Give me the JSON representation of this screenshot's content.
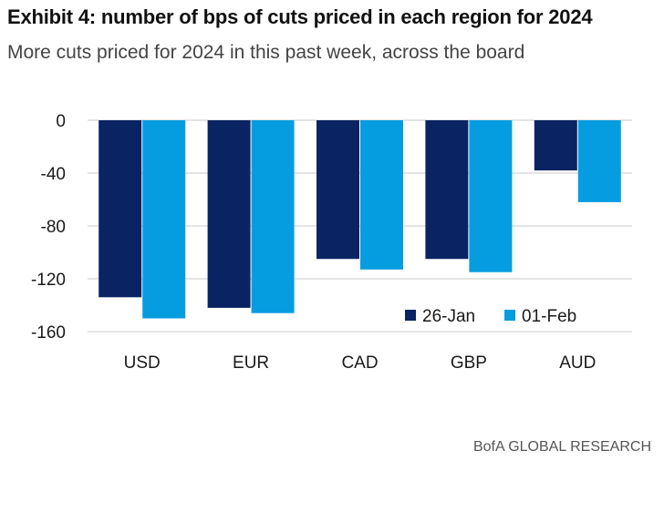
{
  "title": "Exhibit 4: number of bps of cuts priced in each region for 2024",
  "subtitle": "More cuts priced for 2024 in this past week, across the board",
  "source": "BofA GLOBAL RESEARCH",
  "chart_data": {
    "type": "bar",
    "title": "Exhibit 4: number of bps of cuts priced in each region for 2024",
    "xlabel": "",
    "ylabel": "",
    "categories": [
      "USD",
      "EUR",
      "CAD",
      "GBP",
      "AUD"
    ],
    "series": [
      {
        "name": "26-Jan",
        "values": [
          -134,
          -142,
          -105,
          -105,
          -38
        ],
        "color": "#0a2463"
      },
      {
        "name": "01-Feb",
        "values": [
          -150,
          -146,
          -113,
          -115,
          -62
        ],
        "color": "#069de0"
      }
    ],
    "ylim": [
      -160,
      0
    ],
    "yticks": [
      "0",
      "-40",
      "-80",
      "-120",
      "-160"
    ],
    "grid": true,
    "legend_position": "bottom-right"
  }
}
